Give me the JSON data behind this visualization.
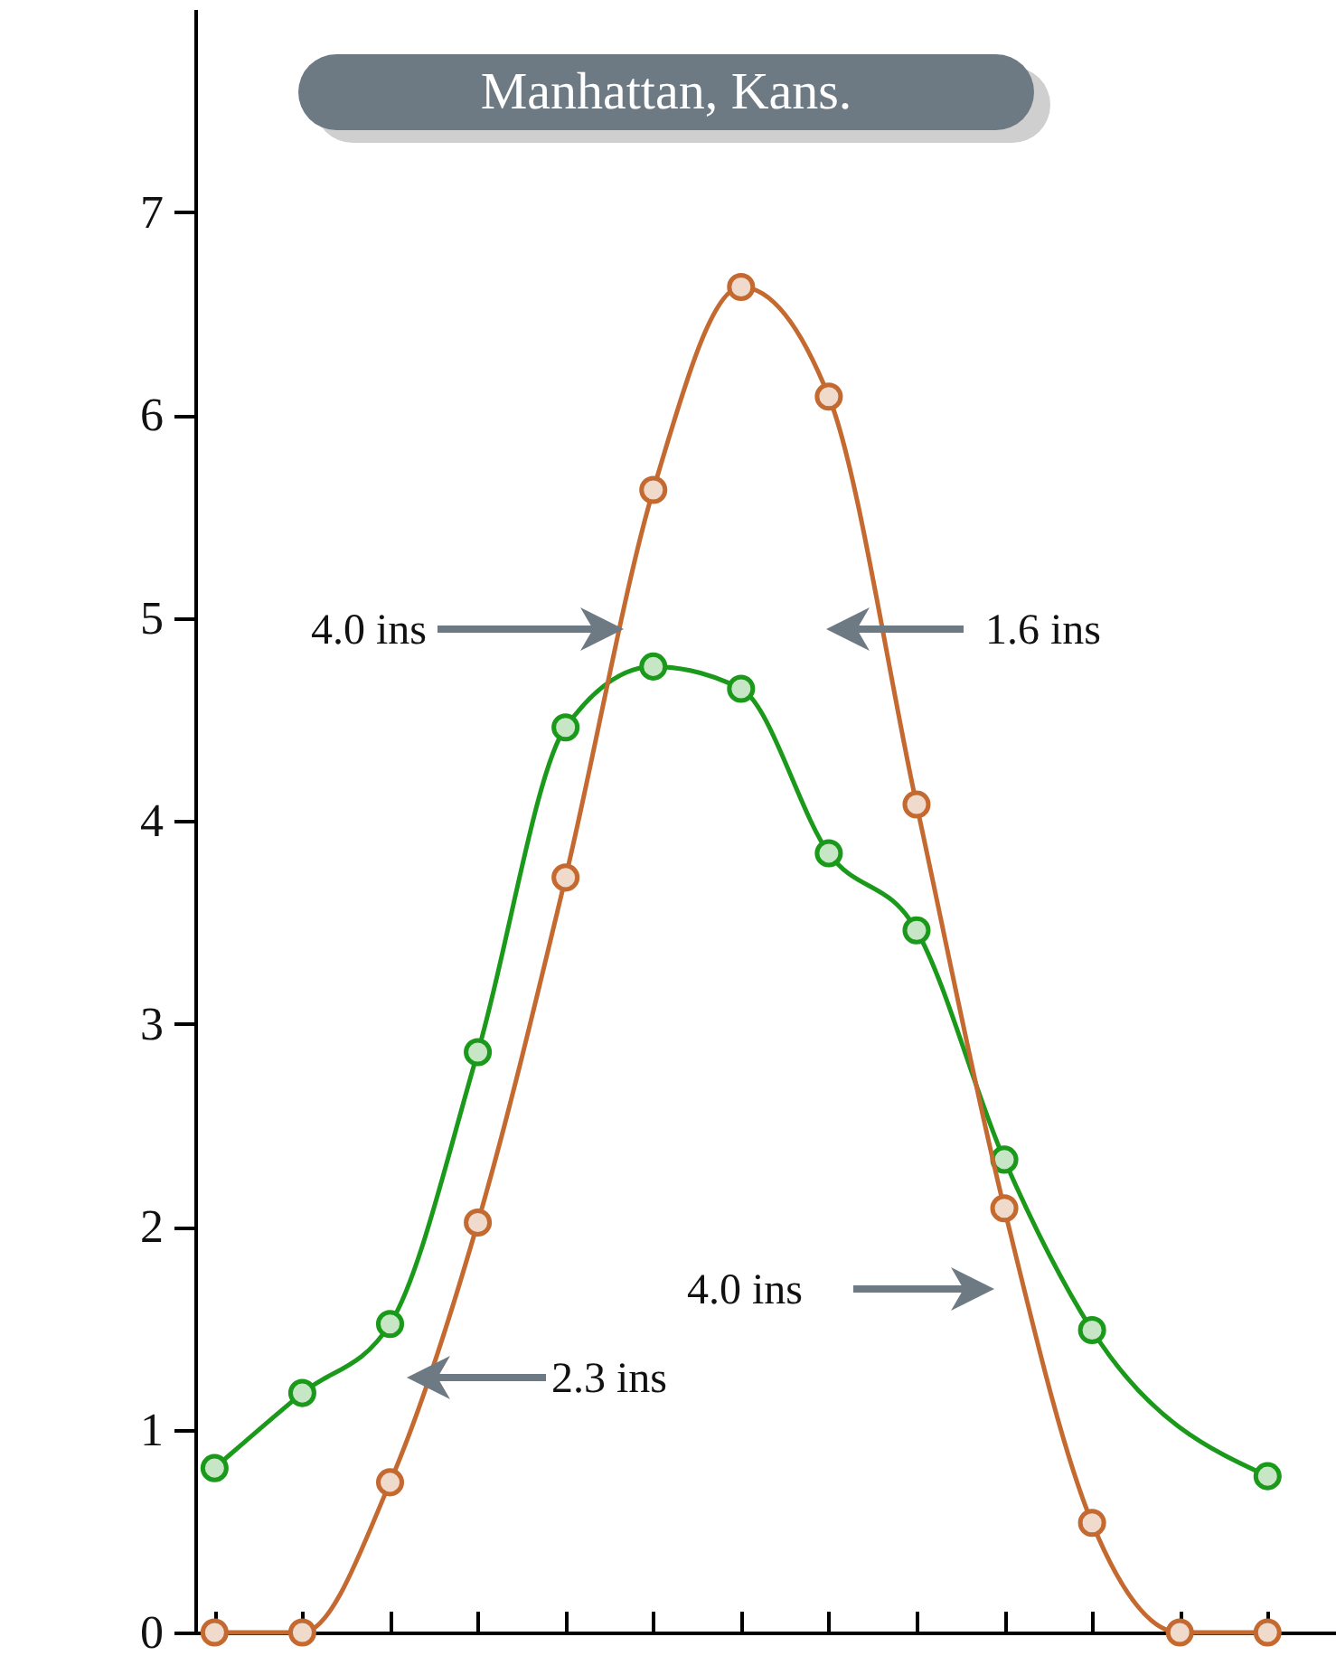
{
  "chart_data": {
    "type": "line",
    "title": "Manhattan, Kans.",
    "categories": [
      null,
      null,
      null,
      null,
      null,
      null,
      null,
      null,
      null,
      null,
      null,
      null,
      null
    ],
    "series": [
      {
        "color": "#1a991a",
        "values": [
          0.81,
          1.18,
          1.52,
          2.86,
          4.46,
          4.76,
          4.65,
          3.84,
          3.46,
          2.33,
          1.49,
          null,
          0.77
        ]
      },
      {
        "color": "#c4692f",
        "values": [
          0,
          0,
          0.74,
          2.02,
          3.72,
          5.63,
          6.63,
          6.09,
          4.08,
          2.09,
          0.54,
          0,
          0
        ]
      }
    ],
    "ylim": [
      0,
      8
    ],
    "yticks": [
      0,
      1,
      2,
      3,
      4,
      5,
      6,
      7
    ],
    "grid": false,
    "marker": "circle",
    "annotations": [
      "4.0 ins",
      "1.6 ins",
      "4.0 ins",
      "2.3 ins"
    ]
  }
}
